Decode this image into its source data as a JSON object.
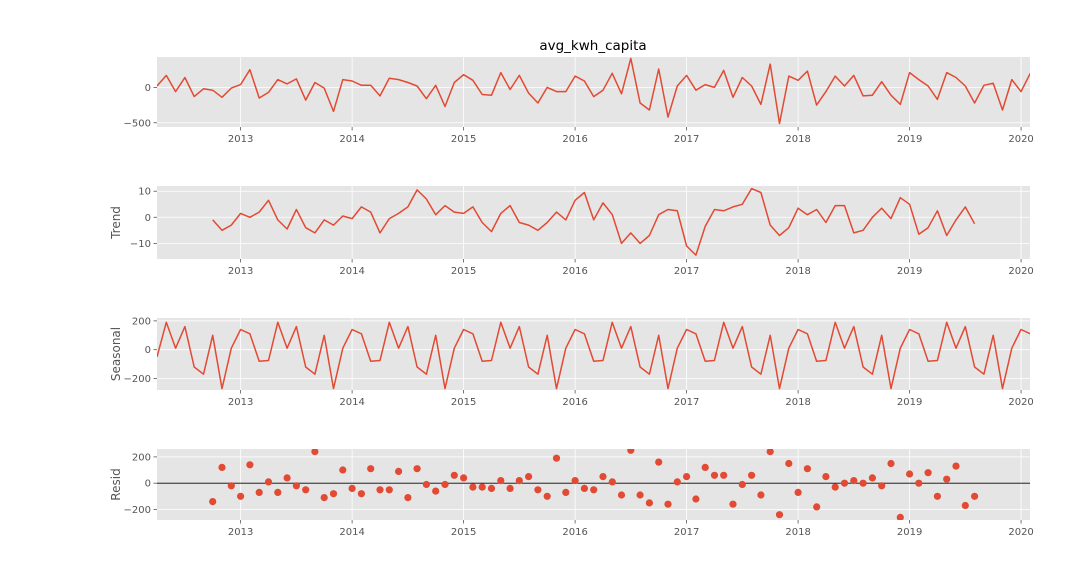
{
  "figure_title": "avg_kwh_capita",
  "colors": {
    "series": "#E24A33",
    "panel_bg": "#E5E5E5",
    "grid": "#FFFFFF",
    "tick_text": "#555555",
    "zero_line": "#000000"
  },
  "x_axis": {
    "ticks": [
      "2013",
      "2014",
      "2015",
      "2016",
      "2017",
      "2018",
      "2019",
      "2020"
    ]
  },
  "chart_data": [
    {
      "type": "line",
      "name": "observed",
      "title": "avg_kwh_capita",
      "ylabel": "",
      "xlim": [
        2012.25,
        2020.08
      ],
      "ylim": [
        -560,
        430
      ],
      "yticks": [
        -500,
        0
      ],
      "grid": true,
      "x_start": 2012.25,
      "x_step": 0.08333,
      "values": [
        20,
        170,
        -60,
        140,
        -130,
        -20,
        -40,
        -140,
        -10,
        40,
        250,
        -150,
        -70,
        110,
        50,
        120,
        -180,
        70,
        -10,
        -340,
        110,
        90,
        30,
        30,
        -120,
        130,
        110,
        70,
        20,
        -160,
        30,
        -270,
        70,
        180,
        100,
        -100,
        -110,
        210,
        -30,
        170,
        -80,
        -220,
        0,
        -60,
        -60,
        160,
        90,
        -130,
        -40,
        200,
        -90,
        410,
        -220,
        -320,
        260,
        -420,
        20,
        170,
        -40,
        40,
        0,
        240,
        -140,
        140,
        20,
        -240,
        330,
        -510,
        160,
        100,
        230,
        -250,
        -60,
        160,
        20,
        170,
        -120,
        -110,
        80,
        -110,
        -240,
        210,
        110,
        20,
        -170,
        210,
        140,
        20,
        -220,
        30,
        60,
        -320,
        110,
        -60,
        200
      ]
    },
    {
      "type": "line",
      "name": "trend",
      "title": "",
      "ylabel": "Trend",
      "xlim": [
        2012.25,
        2020.08
      ],
      "ylim": [
        -16,
        12
      ],
      "yticks": [
        -10,
        0,
        10
      ],
      "grid": true,
      "x_start": 2012.75,
      "x_step": 0.08333,
      "values": [
        -1,
        -5,
        -3,
        1.5,
        0,
        2,
        6.5,
        -1,
        -4.5,
        3,
        -4,
        -6,
        -1,
        -3,
        0.5,
        -0.5,
        4,
        2,
        -6,
        -0.5,
        1.5,
        4,
        10.5,
        7,
        1,
        4.5,
        2,
        1.5,
        4,
        -2,
        -5.5,
        1.5,
        4.5,
        -2,
        -3,
        -5,
        -2,
        2,
        -1,
        6.5,
        9.5,
        -1,
        5.5,
        1,
        -10,
        -6,
        -10,
        -7,
        1,
        3,
        2.5,
        -11,
        -14.5,
        -3.5,
        3,
        2.5,
        4,
        5,
        11,
        9.5,
        -3,
        -7,
        -4,
        3.5,
        1,
        3,
        -2,
        4.5,
        4.5,
        -6,
        -5,
        0,
        3.5,
        -0.5,
        7.5,
        5,
        -6.5,
        -4,
        2.5,
        -7,
        -1,
        4,
        -2.5
      ]
    },
    {
      "type": "line",
      "name": "seasonal",
      "title": "",
      "ylabel": "Seasonal",
      "xlim": [
        2012.25,
        2020.08
      ],
      "ylim": [
        -280,
        220
      ],
      "yticks": [
        -200,
        0,
        200
      ],
      "grid": true,
      "x_start": 2012.25,
      "x_step": 0.08333,
      "values": [
        -50,
        190,
        10,
        160,
        -120,
        -170,
        100,
        -270,
        10,
        140,
        110,
        -80,
        -75,
        190,
        10,
        160,
        -120,
        -170,
        100,
        -270,
        10,
        140,
        110,
        -80,
        -75,
        190,
        10,
        160,
        -120,
        -170,
        100,
        -270,
        10,
        140,
        110,
        -80,
        -75,
        190,
        10,
        160,
        -120,
        -170,
        100,
        -270,
        10,
        140,
        110,
        -80,
        -75,
        190,
        10,
        160,
        -120,
        -170,
        100,
        -270,
        10,
        140,
        110,
        -80,
        -75,
        190,
        10,
        160,
        -120,
        -170,
        100,
        -270,
        10,
        140,
        110,
        -80,
        -75,
        190,
        10,
        160,
        -120,
        -170,
        100,
        -270,
        10,
        140,
        110,
        -80,
        -75,
        190,
        10,
        160,
        -120,
        -170,
        100,
        -270,
        10,
        140,
        110
      ]
    },
    {
      "type": "scatter",
      "name": "resid",
      "title": "",
      "ylabel": "Resid",
      "xlim": [
        2012.25,
        2020.08
      ],
      "ylim": [
        -280,
        260
      ],
      "yticks": [
        -200,
        0,
        200
      ],
      "grid": true,
      "zero_line": true,
      "x_start": 2012.75,
      "x_step": 0.08333,
      "values": [
        -140,
        120,
        -20,
        -100,
        140,
        -70,
        10,
        -70,
        40,
        -20,
        -50,
        240,
        -110,
        -80,
        100,
        -40,
        -80,
        110,
        -50,
        -50,
        90,
        -110,
        110,
        -10,
        -60,
        -10,
        60,
        40,
        -30,
        -30,
        -40,
        20,
        -40,
        20,
        50,
        -50,
        -100,
        190,
        -70,
        20,
        -40,
        -50,
        50,
        10,
        -90,
        250,
        -90,
        -150,
        160,
        -160,
        10,
        50,
        -120,
        120,
        60,
        60,
        -160,
        -10,
        60,
        -90,
        240,
        -240,
        150,
        -70,
        110,
        -180,
        50,
        -30,
        0,
        20,
        0,
        40,
        -20,
        150,
        -260,
        70,
        0,
        80,
        -100,
        30,
        130,
        -170,
        -100
      ]
    }
  ]
}
